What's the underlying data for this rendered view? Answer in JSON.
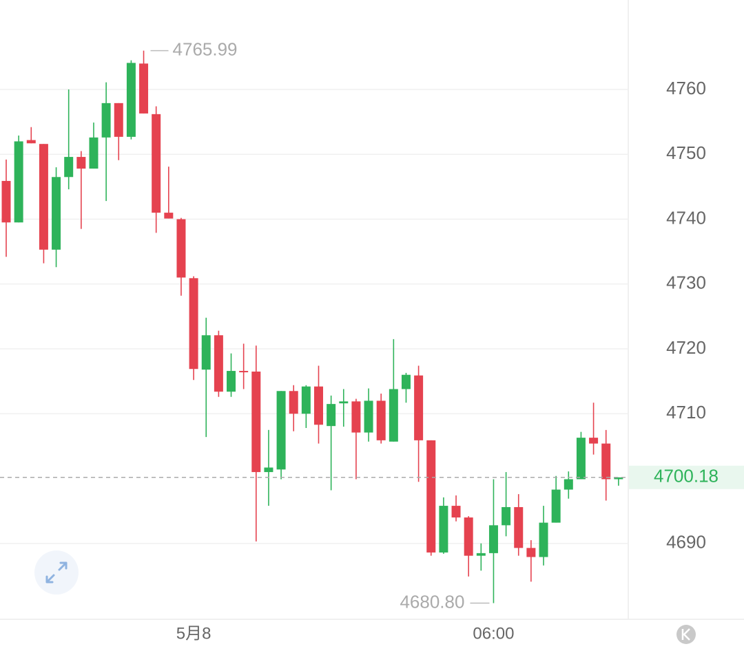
{
  "chart_data": {
    "type": "candlestick",
    "up_color": "#2eb35a",
    "down_color": "#e5424f",
    "grid": true,
    "ylim": [
      4678.3,
      4773.8
    ],
    "yticks": [
      4690,
      4710,
      4720,
      4730,
      4740,
      4750,
      4760
    ],
    "categories": [
      null,
      null,
      null,
      null,
      null,
      null,
      null,
      null,
      null,
      null,
      null,
      null,
      null,
      null,
      null,
      "5月8",
      null,
      null,
      null,
      null,
      null,
      null,
      null,
      null,
      null,
      null,
      null,
      null,
      null,
      null,
      null,
      null,
      null,
      null,
      null,
      null,
      null,
      null,
      null,
      "06:00",
      null,
      null,
      null,
      null,
      null,
      null,
      null,
      null,
      null,
      null
    ],
    "open": [
      4745.9,
      4739.5,
      4752.2,
      4751.6,
      4735.3,
      4746.5,
      4749.6,
      4747.8,
      4752.6,
      4757.9,
      4752.7,
      4764.0,
      4756.2,
      4741.0,
      4740.0,
      4730.9,
      4716.8,
      4722.1,
      4713.4,
      4716.6,
      4716.5,
      4701.0,
      4701.4,
      4713.5,
      4710.0,
      4714.2,
      4708.1,
      4711.6,
      4711.9,
      4707.1,
      4712.0,
      4705.7,
      4713.8,
      4715.9,
      4705.9,
      4688.6,
      4695.8,
      4694.0,
      4688.1,
      4688.5,
      4692.8,
      4695.6,
      4689.3,
      4687.9,
      4693.2,
      4698.3,
      4699.9,
      4706.3,
      4705.4,
      4699.9
    ],
    "high": [
      4749.2,
      4752.9,
      4754.2,
      4751.6,
      4748.0,
      4760.0,
      4750.5,
      4754.9,
      4761.1,
      4757.9,
      4764.5,
      4765.99,
      4757.4,
      4748.1,
      4740.2,
      4731.2,
      4724.8,
      4722.8,
      4719.3,
      4720.8,
      4720.5,
      4707.5,
      4713.5,
      4714.4,
      4714.4,
      4717.4,
      4712.8,
      4713.8,
      4712.3,
      4713.9,
      4713.1,
      4721.5,
      4716.3,
      4717.4,
      4705.9,
      4697.1,
      4697.4,
      4694.2,
      4690.0,
      4699.9,
      4701.0,
      4697.6,
      4690.5,
      4695.8,
      4700.4,
      4701.1,
      4707.2,
      4711.7,
      4707.5,
      4700.18
    ],
    "low": [
      4734.2,
      4739.5,
      4751.7,
      4733.2,
      4732.6,
      4744.6,
      4738.5,
      4747.8,
      4742.8,
      4749.1,
      4752.3,
      4756.3,
      4737.9,
      4740.1,
      4728.2,
      4715.2,
      4706.4,
      4712.6,
      4712.6,
      4713.8,
      4690.3,
      4695.8,
      4699.9,
      4707.3,
      4707.8,
      4705.4,
      4698.2,
      4708.0,
      4699.9,
      4705.7,
      4705.4,
      4705.7,
      4711.7,
      4699.5,
      4688.1,
      4688.4,
      4693.4,
      4684.9,
      4685.8,
      4680.8,
      4691.1,
      4688.1,
      4684.1,
      4686.6,
      4693.2,
      4696.9,
      4699.9,
      4703.7,
      4696.6,
      4698.9
    ],
    "close": [
      4739.5,
      4752.0,
      4751.7,
      4735.3,
      4746.5,
      4749.6,
      4747.8,
      4752.6,
      4757.9,
      4752.7,
      4764.1,
      4756.3,
      4741.0,
      4740.1,
      4731.0,
      4716.9,
      4722.1,
      4713.4,
      4716.6,
      4716.5,
      4701.0,
      4701.7,
      4713.5,
      4710.0,
      4714.2,
      4708.3,
      4711.5,
      4711.9,
      4707.1,
      4712.0,
      4705.9,
      4713.8,
      4716.0,
      4705.9,
      4688.6,
      4695.8,
      4694.0,
      4688.1,
      4688.5,
      4692.8,
      4695.6,
      4689.3,
      4687.9,
      4693.2,
      4698.3,
      4699.9,
      4706.3,
      4705.4,
      4699.9,
      4700.18
    ],
    "max_marker": 4765.99,
    "min_marker": {
      "value": 4680.8,
      "label": "4680.80"
    },
    "last_price": 4700.18
  }
}
